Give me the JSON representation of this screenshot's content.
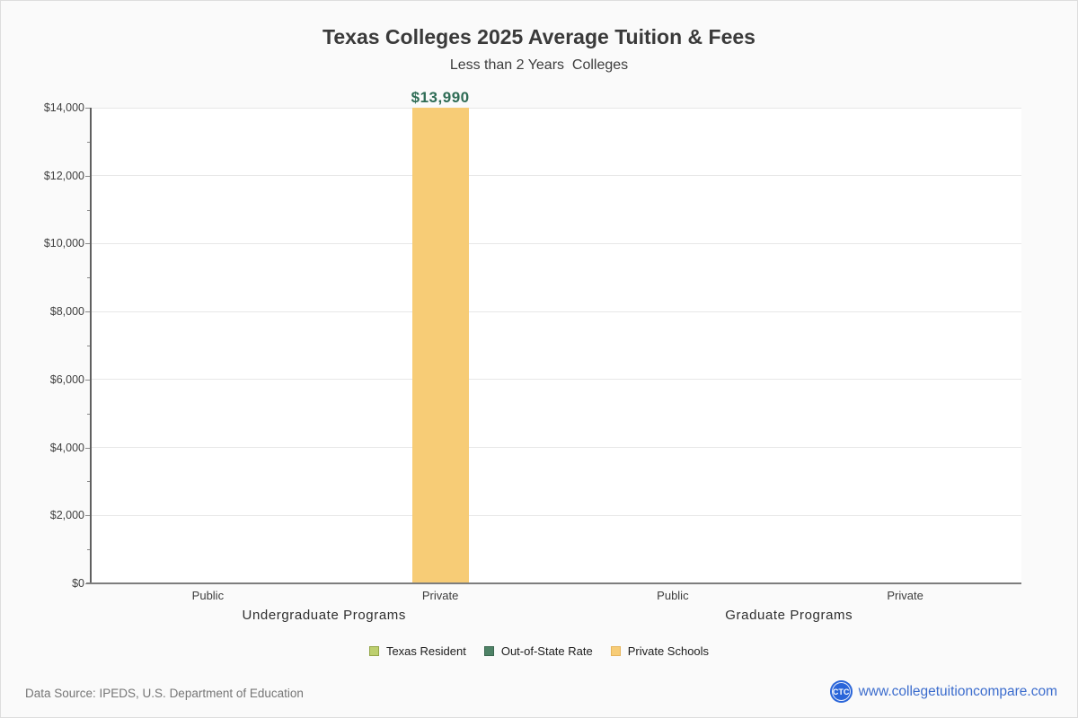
{
  "chart_data": {
    "type": "bar",
    "title": "Texas Colleges 2025 Average Tuition & Fees",
    "subtitle": "Less than 2 Years  Colleges",
    "groups": [
      {
        "label": "Undergraduate Programs",
        "categories": [
          "Public",
          "Private"
        ]
      },
      {
        "label": "Graduate Programs",
        "categories": [
          "Public",
          "Private"
        ]
      }
    ],
    "series": [
      {
        "name": "Texas Resident",
        "color": "#bdcf6e",
        "border_color": "#93a548",
        "values": [
          null,
          null,
          null,
          null
        ],
        "labels": [
          null,
          null,
          null,
          null
        ]
      },
      {
        "name": "Out-of-State Rate",
        "color": "#4e8266",
        "border_color": "#3b6750",
        "values": [
          null,
          null,
          null,
          null
        ],
        "labels": [
          null,
          null,
          null,
          null
        ]
      },
      {
        "name": "Private Schools",
        "color": "#f7cc76",
        "border_color": "#e6b45c",
        "values": [
          null,
          13990,
          null,
          null
        ],
        "labels": [
          null,
          "$13,990",
          null,
          null
        ]
      }
    ],
    "ylim": [
      0,
      14000
    ],
    "ytick_step": 2000,
    "ytick_labels": [
      "$0",
      "$2,000",
      "$4,000",
      "$6,000",
      "$8,000",
      "$10,000",
      "$12,000",
      "$14,000"
    ],
    "grid": true,
    "legend_position": "bottom",
    "value_label_color": "#2e6c55"
  },
  "footer": {
    "source": "Data Source: IPEDS, U.S. Department of Education",
    "logo_text": "CTC",
    "website": "www.collegetuitioncompare.com"
  }
}
